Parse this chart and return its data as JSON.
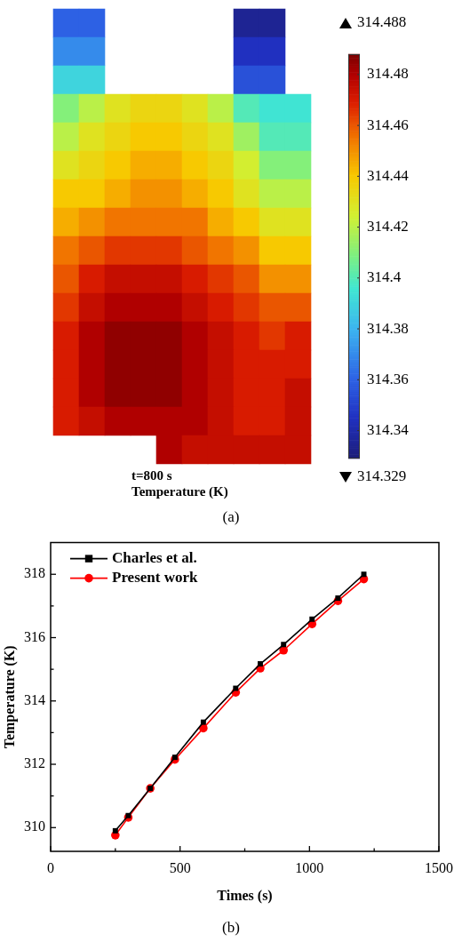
{
  "chart_data": [
    {
      "type": "heatmap",
      "title": "t=800 s",
      "clabel": "Temperature (K)",
      "categories": [
        null,
        null,
        null,
        null,
        null,
        null,
        null,
        null,
        null,
        null
      ],
      "y_categories": [
        null,
        null,
        null,
        null,
        null,
        null,
        null,
        null,
        null,
        null,
        null,
        null,
        null,
        null,
        null,
        null
      ],
      "cells": [
        [
          314.36,
          314.36,
          null,
          null,
          null,
          null,
          null,
          314.335,
          314.335,
          null
        ],
        [
          314.37,
          314.37,
          null,
          null,
          null,
          null,
          null,
          314.345,
          314.345,
          null
        ],
        [
          314.39,
          314.39,
          null,
          null,
          null,
          null,
          null,
          314.355,
          314.355,
          null
        ],
        [
          314.41,
          314.42,
          314.43,
          314.435,
          314.435,
          314.43,
          314.42,
          314.4,
          314.395,
          314.395
        ],
        [
          314.42,
          314.43,
          314.435,
          314.44,
          314.44,
          314.435,
          314.43,
          314.415,
          314.4,
          314.4
        ],
        [
          314.43,
          314.435,
          314.44,
          314.445,
          314.445,
          314.44,
          314.435,
          314.425,
          314.41,
          314.41
        ],
        [
          314.44,
          314.44,
          314.445,
          314.45,
          314.45,
          314.445,
          314.44,
          314.43,
          314.42,
          314.42
        ],
        [
          314.445,
          314.45,
          314.455,
          314.455,
          314.455,
          314.455,
          314.445,
          314.44,
          314.43,
          314.43
        ],
        [
          314.455,
          314.46,
          314.465,
          314.465,
          314.465,
          314.46,
          314.455,
          314.45,
          314.44,
          314.44
        ],
        [
          314.46,
          314.47,
          314.475,
          314.475,
          314.475,
          314.47,
          314.465,
          314.46,
          314.45,
          314.45
        ],
        [
          314.465,
          314.475,
          314.48,
          314.48,
          314.48,
          314.475,
          314.47,
          314.465,
          314.46,
          314.46
        ],
        [
          314.47,
          314.48,
          314.485,
          314.485,
          314.485,
          314.48,
          314.475,
          314.47,
          314.465,
          314.47
        ],
        [
          314.47,
          314.48,
          314.485,
          314.485,
          314.485,
          314.48,
          314.475,
          314.47,
          314.47,
          314.47
        ],
        [
          314.47,
          314.48,
          314.485,
          314.485,
          314.485,
          314.48,
          314.475,
          314.47,
          314.47,
          314.475
        ],
        [
          314.47,
          314.475,
          314.48,
          314.48,
          314.48,
          314.48,
          314.475,
          314.47,
          314.47,
          314.475
        ],
        [
          null,
          null,
          null,
          null,
          314.48,
          314.475,
          314.475,
          314.475,
          314.475,
          314.475
        ]
      ],
      "clim": [
        314.329,
        314.488
      ],
      "cticks": [
        314.34,
        314.36,
        314.38,
        314.4,
        314.42,
        314.44,
        314.46,
        314.48
      ],
      "annotations": [
        "314.488",
        "314.329",
        "(a)"
      ]
    },
    {
      "type": "line",
      "xlabel": "Times (s)",
      "ylabel": "Temperature (K)",
      "x": [
        250,
        300,
        385,
        480,
        590,
        715,
        810,
        900,
        1010,
        1110,
        1210
      ],
      "series": [
        {
          "name": "Charles et al.",
          "color": "#000000",
          "marker": "square",
          "values": [
            309.9,
            310.38,
            311.24,
            312.22,
            313.33,
            314.4,
            315.17,
            315.78,
            316.58,
            317.25,
            318
          ]
        },
        {
          "name": "Present work",
          "color": "#ff0000",
          "marker": "circle",
          "values": [
            309.76,
            310.32,
            311.24,
            312.15,
            313.14,
            314.27,
            315.03,
            315.6,
            316.43,
            317.16,
            317.85
          ]
        }
      ],
      "xlim": [
        0,
        1500
      ],
      "xticks": [
        0,
        {
          "value": 250,
          "label": null
        },
        500,
        {
          "value": 750,
          "label": null
        },
        1000,
        {
          "value": 1250,
          "label": null
        },
        1500
      ],
      "ylim": [
        309.25,
        319
      ],
      "yticks": [
        310,
        {
          "value": 311,
          "label": null
        },
        312,
        {
          "value": 313,
          "label": null
        },
        314,
        {
          "value": 315,
          "label": null
        },
        316,
        {
          "value": 317,
          "label": null
        },
        318
      ],
      "legend": "top left",
      "annotations": [
        "(b)"
      ]
    }
  ]
}
